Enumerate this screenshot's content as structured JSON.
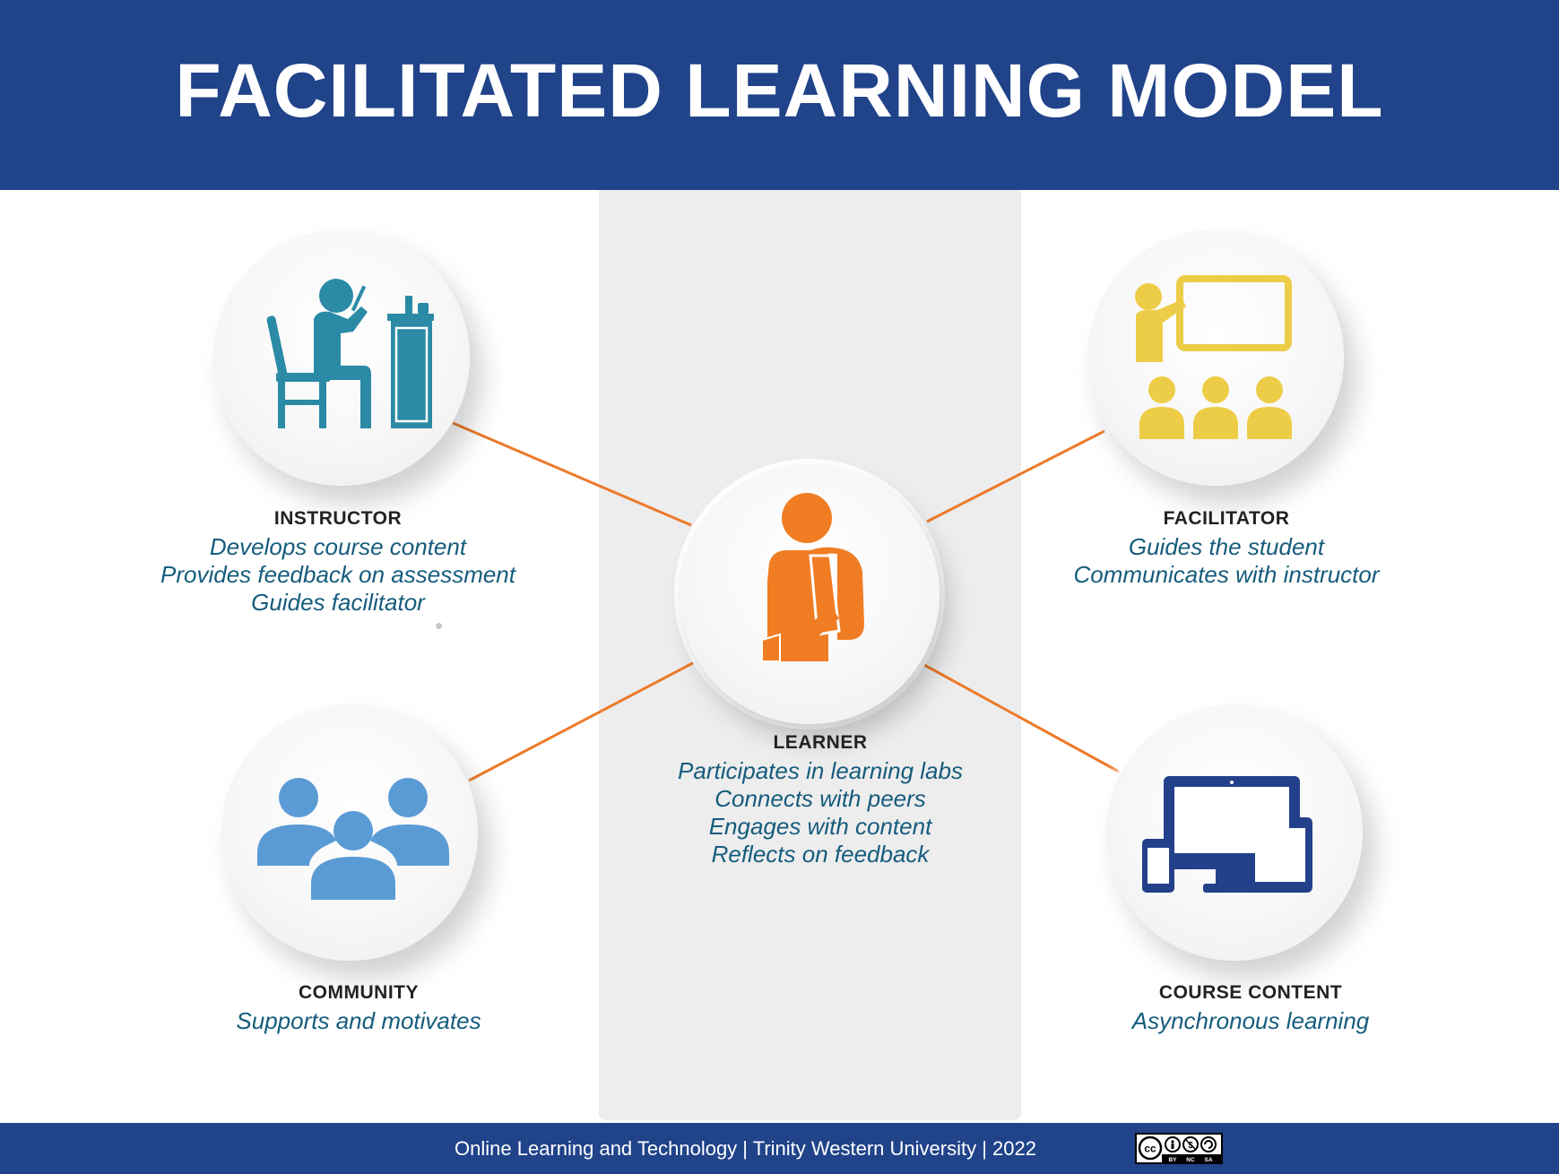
{
  "header": {
    "title": "FACILITATED LEARNING MODEL"
  },
  "colors": {
    "header_bg": "#20438a",
    "connector": "#ec7a2a",
    "instructor_icon": "#2b8aa6",
    "facilitator_icon": "#edcd47",
    "learner_icon": "#f07d24",
    "community_icon": "#5b9bd5",
    "content_icon": "#23418b",
    "description_text": "#155c7c"
  },
  "nodes": {
    "instructor": {
      "title": "INSTRUCTOR",
      "lines": [
        "Develops course content",
        "Provides feedback on assessment",
        "Guides facilitator"
      ],
      "icon": "person-at-desk-icon"
    },
    "facilitator": {
      "title": "FACILITATOR",
      "lines": [
        "Guides the student",
        "Communicates with instructor"
      ],
      "icon": "presenter-with-audience-icon"
    },
    "learner": {
      "title": "LEARNER",
      "lines": [
        "Participates in learning labs",
        "Connects with peers",
        "Engages with content",
        "Reflects on feedback"
      ],
      "icon": "student-with-backpack-icon"
    },
    "community": {
      "title": "COMMUNITY",
      "lines": [
        "Supports and motivates"
      ],
      "icon": "group-of-people-icon"
    },
    "course_content": {
      "title": "COURSE CONTENT",
      "lines": [
        "Asynchronous learning"
      ],
      "icon": "devices-icon"
    }
  },
  "footer": {
    "credit": "Online Learning and Technology | Trinity Western University | 2022",
    "license": {
      "cc": "cc",
      "terms": [
        "BY",
        "NC",
        "SA"
      ]
    }
  }
}
